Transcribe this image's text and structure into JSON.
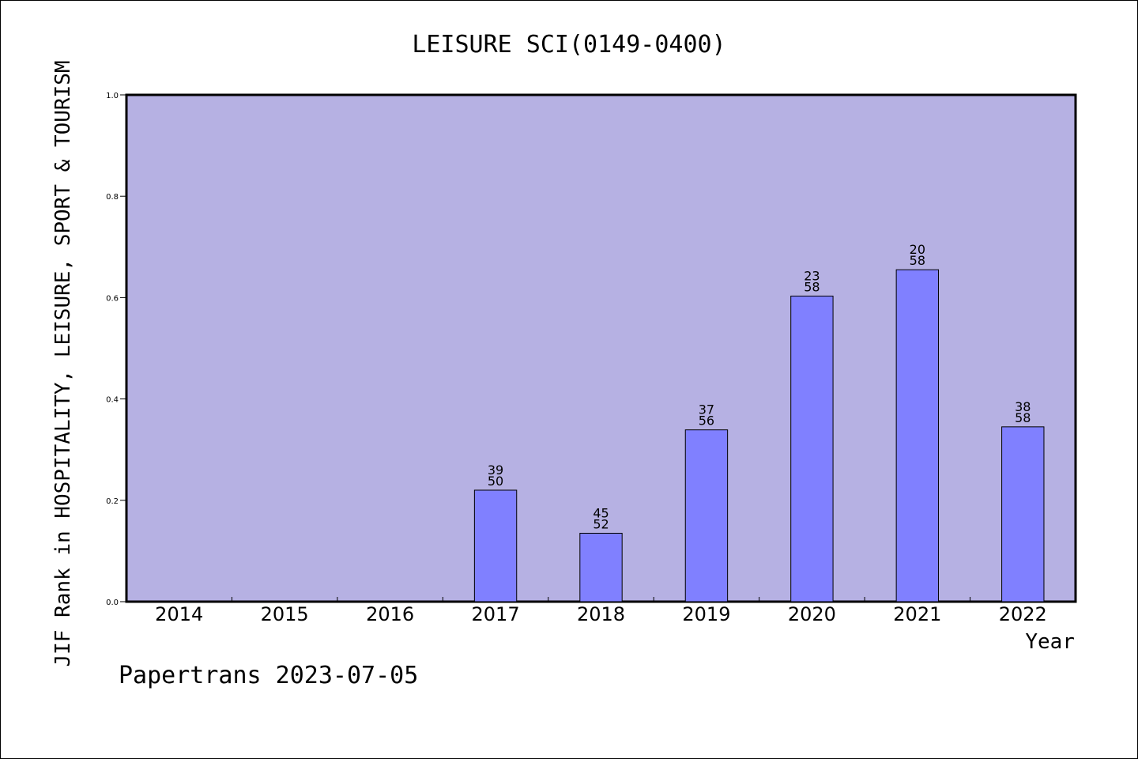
{
  "chart_data": {
    "type": "bar",
    "title": "LEISURE SCI(0149-0400)",
    "xlabel": "Year",
    "ylabel": "JIF Rank in HOSPITALITY, LEISURE, SPORT & TOURISM",
    "categories": [
      "2014",
      "2015",
      "2016",
      "2017",
      "2018",
      "2019",
      "2020",
      "2021",
      "2022"
    ],
    "values": [
      null,
      null,
      null,
      0.22,
      0.135,
      0.339,
      0.603,
      0.655,
      0.345
    ],
    "rank_labels": [
      null,
      null,
      null,
      {
        "rank": "39",
        "total": "50"
      },
      {
        "rank": "45",
        "total": "52"
      },
      {
        "rank": "37",
        "total": "56"
      },
      {
        "rank": "23",
        "total": "58"
      },
      {
        "rank": "20",
        "total": "58"
      },
      {
        "rank": "38",
        "total": "58"
      }
    ],
    "ylim": [
      0,
      1
    ],
    "yticks": [
      "0.0",
      "0.2",
      "0.4",
      "0.6",
      "0.8",
      "1.0"
    ],
    "grid": false,
    "legend": "none",
    "colors": {
      "plot_background": "#b6b1e3",
      "bar_fill": "#8080ff",
      "bar_stroke": "#000000"
    }
  },
  "footer": {
    "text": "Papertrans 2023-07-05"
  }
}
